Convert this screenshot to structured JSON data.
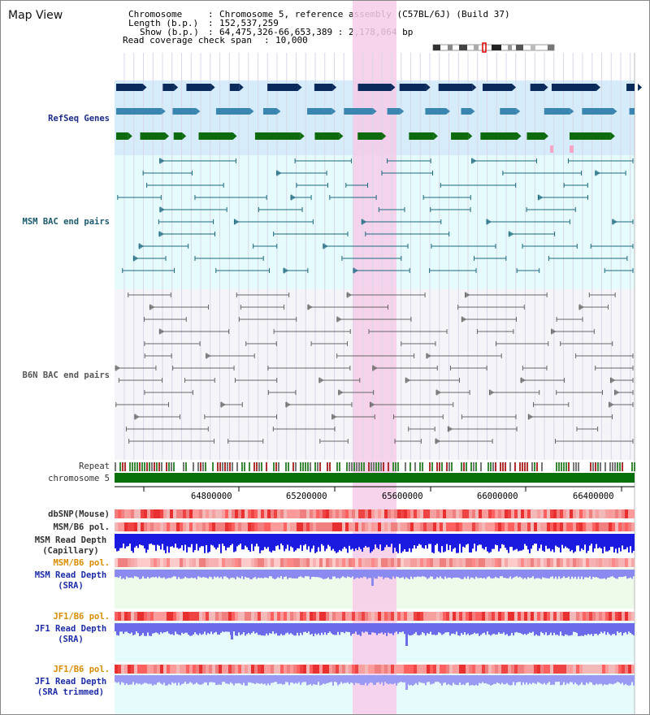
{
  "app_title": "Map View",
  "header": {
    "chromosome_label": "Chromosome",
    "chromosome_value": "Chromosome 5, reference assembly (C57BL/6J) (Build 37)",
    "length_label": "Length (b.p.)",
    "length_value": "152,537,259",
    "show_label": "Show (b.p.)",
    "show_value": "64,475,326-66,653,389 : 2,178,064 bp",
    "coverage_label": "Read coverage check span",
    "coverage_value": "10,000"
  },
  "tracks": {
    "refseq": "RefSeq Genes",
    "msm_bac": "MSM BAC end pairs",
    "b6n_bac": "B6N BAC end pairs",
    "repeat": "Repeat",
    "chromosome": "chromosome 5",
    "dbsnp": "dbSNP(Mouse)",
    "msm_b6_pol_1": "MSM/B6 pol.",
    "msm_depth_cap_1": "MSM Read Depth",
    "msm_depth_cap_2": "(Capillary)",
    "msm_b6_pol_2": "MSM/B6 pol.",
    "msm_depth_sra_1": "MSM Read Depth",
    "msm_depth_sra_2": "(SRA)",
    "jf1_b6_pol_1": "JF1/B6 pol.",
    "jf1_depth_sra_1": "JF1 Read Depth",
    "jf1_depth_sra_2": "(SRA)",
    "jf1_b6_pol_2": "JF1/B6 pol.",
    "jf1_depth_trim_1": "JF1 Read Depth",
    "jf1_depth_trim_2": "(SRA trimmed)"
  },
  "axis_ticks": [
    "64800000",
    "65200000",
    "65600000",
    "66000000",
    "66400000"
  ],
  "colors": {
    "refseq_label": "#1c2c8a",
    "msm_bac_label": "#1c5a6e",
    "b6n_bac_label": "#555555",
    "gold_label": "#d98c00",
    "blue_label": "#1c2ca8",
    "highlight": "#f7cbe9",
    "refseq_bg": "#d6ecfa",
    "msm_bg": "#e6fbfb",
    "b6n_bg": "#f5f5f9"
  }
}
